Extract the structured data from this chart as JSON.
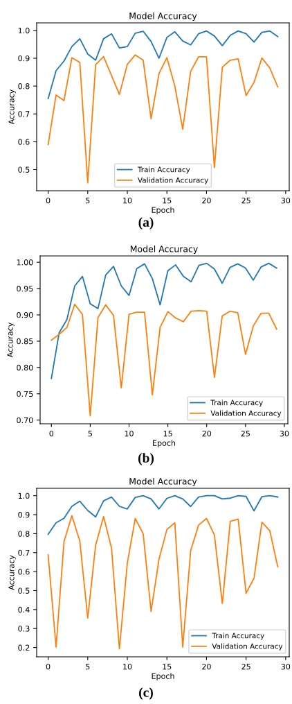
{
  "chart_data": [
    {
      "type": "line",
      "title": "Model Accuracy",
      "xlabel": "Epoch",
      "ylabel": "Accuracy",
      "annotations": [
        "(a)"
      ],
      "x": [
        0,
        1,
        2,
        3,
        4,
        5,
        6,
        7,
        8,
        9,
        10,
        11,
        12,
        13,
        14,
        15,
        16,
        17,
        18,
        19,
        20,
        21,
        22,
        23,
        24,
        25,
        26,
        27,
        28,
        29
      ],
      "series": [
        {
          "name": "Train Accuracy",
          "color": "#1f77b4",
          "values": [
            0.755,
            0.855,
            0.89,
            0.942,
            0.97,
            0.915,
            0.893,
            0.97,
            0.988,
            0.937,
            0.942,
            0.99,
            0.997,
            0.96,
            0.9,
            0.975,
            0.995,
            0.962,
            0.948,
            0.988,
            0.998,
            0.98,
            0.945,
            0.982,
            0.998,
            0.988,
            0.958,
            0.993,
            0.998,
            0.978
          ]
        },
        {
          "name": "Validation Accuracy",
          "color": "#ff7f0e",
          "values": [
            0.59,
            0.768,
            0.748,
            0.902,
            0.885,
            0.452,
            0.877,
            0.906,
            0.838,
            0.77,
            0.878,
            0.912,
            0.893,
            0.683,
            0.845,
            0.902,
            0.8,
            0.645,
            0.853,
            0.905,
            0.905,
            0.507,
            0.868,
            0.893,
            0.898,
            0.766,
            0.813,
            0.901,
            0.865,
            0.797
          ]
        }
      ],
      "xlim": [
        -1.45,
        30.45
      ],
      "xticks": [
        0,
        5,
        10,
        15,
        20,
        25,
        30
      ],
      "ylim": [
        0.424,
        1.027
      ],
      "yticks": [
        {
          "value": 0.5,
          "label": "0.5"
        },
        {
          "value": 0.6,
          "label": "0.6"
        },
        {
          "value": 0.7,
          "label": "0.7"
        },
        {
          "value": 0.8,
          "label": "0.8"
        },
        {
          "value": 0.9,
          "label": "0.9"
        },
        {
          "value": 1.0,
          "label": "1.0"
        }
      ],
      "legend": "bottom",
      "grid": false,
      "marker": "none",
      "line_style": "solid"
    },
    {
      "type": "line",
      "title": "Model Accuracy",
      "xlabel": "Epoch",
      "ylabel": "Accuracy",
      "annotations": [
        "(b)"
      ],
      "x": [
        0,
        1,
        2,
        3,
        4,
        5,
        6,
        7,
        8,
        9,
        10,
        11,
        12,
        13,
        14,
        15,
        16,
        17,
        18,
        19,
        20,
        21,
        22,
        23,
        24,
        25,
        26,
        27,
        28,
        29
      ],
      "series": [
        {
          "name": "Train Accuracy",
          "color": "#1f77b4",
          "values": [
            0.779,
            0.866,
            0.891,
            0.955,
            0.973,
            0.921,
            0.912,
            0.976,
            0.992,
            0.955,
            0.937,
            0.988,
            0.997,
            0.969,
            0.919,
            0.984,
            0.995,
            0.973,
            0.963,
            0.994,
            0.998,
            0.987,
            0.96,
            0.99,
            0.997,
            0.989,
            0.966,
            0.991,
            0.998,
            0.989
          ]
        },
        {
          "name": "Validation Accuracy",
          "color": "#ff7f0e",
          "values": [
            0.852,
            0.863,
            0.876,
            0.92,
            0.901,
            0.708,
            0.895,
            0.919,
            0.899,
            0.761,
            0.901,
            0.905,
            0.905,
            0.748,
            0.876,
            0.906,
            0.894,
            0.887,
            0.907,
            0.908,
            0.907,
            0.781,
            0.898,
            0.907,
            0.904,
            0.825,
            0.879,
            0.903,
            0.903,
            0.873
          ]
        }
      ],
      "xlim": [
        -1.45,
        30.45
      ],
      "xticks": [
        0,
        5,
        10,
        15,
        20,
        25,
        30
      ],
      "ylim": [
        0.693,
        1.012
      ],
      "yticks": [
        {
          "value": 0.7,
          "label": "0.70"
        },
        {
          "value": 0.75,
          "label": "0.75"
        },
        {
          "value": 0.8,
          "label": "0.80"
        },
        {
          "value": 0.85,
          "label": "0.85"
        },
        {
          "value": 0.9,
          "label": "0.90"
        },
        {
          "value": 0.95,
          "label": "0.95"
        },
        {
          "value": 1.0,
          "label": "1.00"
        }
      ],
      "legend": "bottom right",
      "grid": false,
      "marker": "none",
      "line_style": "solid"
    },
    {
      "type": "line",
      "title": "Model Accuracy",
      "xlabel": "Epoch",
      "ylabel": "Accuracy",
      "annotations": [
        "(c)"
      ],
      "x": [
        0,
        1,
        2,
        3,
        4,
        5,
        6,
        7,
        8,
        9,
        10,
        11,
        12,
        13,
        14,
        15,
        16,
        17,
        18,
        19,
        20,
        21,
        22,
        23,
        24,
        25,
        26,
        27,
        28,
        29
      ],
      "series": [
        {
          "name": "Train Accuracy",
          "color": "#1f77b4",
          "values": [
            0.797,
            0.857,
            0.881,
            0.944,
            0.971,
            0.922,
            0.888,
            0.973,
            0.993,
            0.944,
            0.93,
            0.991,
            1.0,
            0.983,
            0.93,
            0.986,
            1.0,
            0.983,
            0.943,
            0.993,
            1.0,
            1.0,
            0.983,
            0.987,
            1.0,
            0.996,
            0.92,
            0.995,
            1.0,
            0.993
          ]
        },
        {
          "name": "Validation Accuracy",
          "color": "#ff7f0e",
          "values": [
            0.688,
            0.202,
            0.758,
            0.895,
            0.76,
            0.355,
            0.74,
            0.89,
            0.725,
            0.193,
            0.645,
            0.88,
            0.8,
            0.39,
            0.665,
            0.822,
            0.857,
            0.202,
            0.71,
            0.845,
            0.88,
            0.793,
            0.432,
            0.865,
            0.877,
            0.486,
            0.565,
            0.86,
            0.815,
            0.625
          ]
        }
      ],
      "xlim": [
        -1.45,
        30.45
      ],
      "xticks": [
        0,
        5,
        10,
        15,
        20,
        25,
        30
      ],
      "ylim": [
        0.151,
        1.039
      ],
      "yticks": [
        {
          "value": 0.2,
          "label": "0.2"
        },
        {
          "value": 0.3,
          "label": "0.3"
        },
        {
          "value": 0.4,
          "label": "0.4"
        },
        {
          "value": 0.5,
          "label": "0.5"
        },
        {
          "value": 0.6,
          "label": "0.6"
        },
        {
          "value": 0.7,
          "label": "0.7"
        },
        {
          "value": 0.8,
          "label": "0.8"
        },
        {
          "value": 0.9,
          "label": "0.9"
        },
        {
          "value": 1.0,
          "label": "1.0"
        }
      ],
      "legend": "bottom right",
      "grid": false,
      "marker": "none",
      "line_style": "solid"
    }
  ]
}
